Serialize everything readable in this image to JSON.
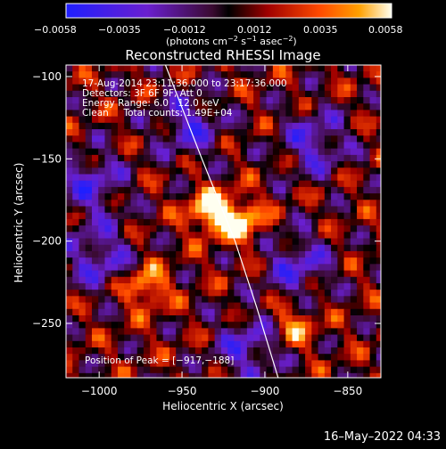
{
  "chart_data": {
    "type": "heatmap",
    "title": "Reconstructed RHESSI Image",
    "xlabel": "Heliocentric X (arcsec)",
    "ylabel": "Heliocentric Y (arcsec)",
    "xlim": [
      -1020,
      -830
    ],
    "ylim": [
      -283,
      -93
    ],
    "x_ticks": [
      -1000,
      -950,
      -900,
      -850
    ],
    "y_ticks": [
      -100,
      -150,
      -200,
      -250
    ],
    "x_tick_labels": [
      "−1000",
      "−950",
      "−900",
      "−850"
    ],
    "y_tick_labels": [
      "−100",
      "−150",
      "−200",
      "−250"
    ],
    "colorbar": {
      "min": -0.0058,
      "max": 0.0058,
      "ticks": [
        -0.0058,
        -0.0035,
        -0.0012,
        0.0012,
        0.0035,
        0.0058
      ],
      "tick_labels": [
        "−0.0058",
        "−0.0035",
        "−0.0012",
        "0.0012",
        "0.0035",
        "0.0058"
      ],
      "label_main": "(photons cm",
      "label_exp1": "−2",
      "label_mid1": " s",
      "label_exp2": "−1",
      "label_mid2": " asec",
      "label_exp3": "−2",
      "label_end": ")"
    },
    "sources": [
      {
        "x": -933,
        "y": -182,
        "peak": 0.0058
      },
      {
        "x": -914,
        "y": -188,
        "peak": 0.0052
      },
      {
        "x": -972,
        "y": -228,
        "peak": 0.0044
      },
      {
        "x": -882,
        "y": -251,
        "peak": 0.0035
      }
    ],
    "limb": [
      [
        -960,
        -93
      ],
      [
        -938,
        -150
      ],
      [
        -918,
        -200
      ],
      [
        -905,
        -240
      ],
      [
        -892,
        -283
      ]
    ],
    "annotations": {
      "line1": "17-Aug-2014 23:11:36.000 to 23:17:36.000",
      "line2": "Detectors: 3F 6F 9F, Att 0",
      "line3": "Energy Range: 6.0 - 12.0 keV",
      "line4": "Clean     Total counts: 1.49E+04",
      "peak_label": "Position of Peak = [−917,−188]"
    }
  },
  "timestamp": "16–May–2022 04:33"
}
